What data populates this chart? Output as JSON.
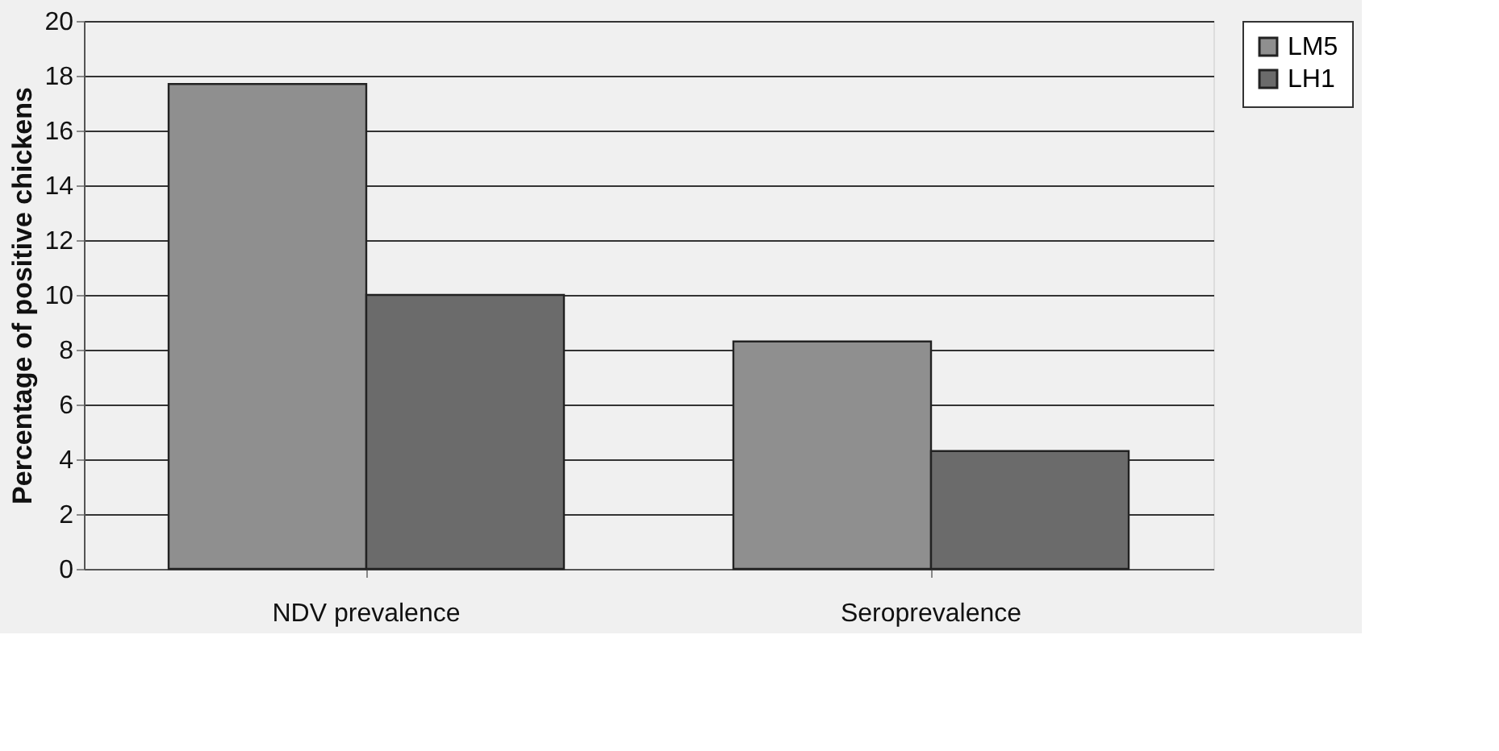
{
  "chart_data": {
    "type": "bar",
    "ylabel": "Percentage of positive chickens",
    "categories": [
      "NDV prevalence",
      "Seroprevalence"
    ],
    "series": [
      {
        "name": "LM5",
        "color": "#8f8f8f",
        "values": [
          17.7,
          8.3
        ]
      },
      {
        "name": "LH1",
        "color": "#6b6b6b",
        "values": [
          10,
          4.3
        ]
      }
    ],
    "ylim": [
      0,
      20
    ],
    "yticks": [
      0,
      2,
      4,
      6,
      8,
      10,
      12,
      14,
      16,
      18,
      20
    ],
    "grid": "y",
    "legend": "right"
  }
}
